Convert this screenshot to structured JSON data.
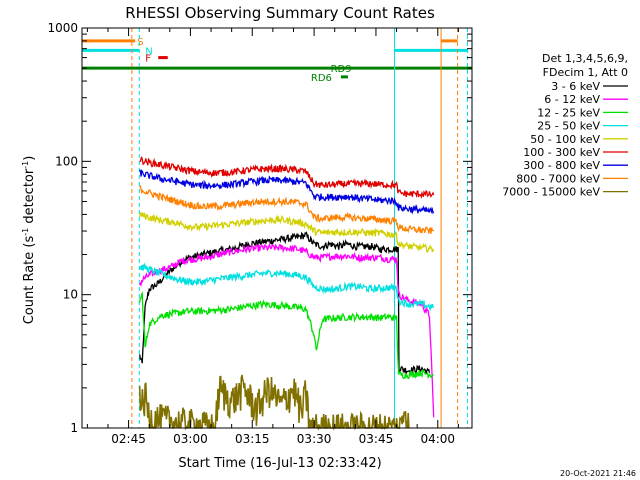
{
  "chart_data": {
    "type": "line",
    "title": "RHESSI Observing Summary Count Rates",
    "xlabel": "Start Time (16-Jul-13 02:33:42)",
    "ylabel": "Count Rate (s",
    "ylabel_sup1": "-1",
    "ylabel_mid": " detector",
    "ylabel_sup2": "-1",
    "ylabel_end": ")",
    "yscale": "log",
    "ylim": [
      1,
      1000
    ],
    "xlim": [
      33.7,
      128.3
    ],
    "x_unit": "minutes after 02:00 UT",
    "x_ticks": [
      {
        "v": 45,
        "label": "02:45"
      },
      {
        "v": 60,
        "label": "03:00"
      },
      {
        "v": 75,
        "label": "03:15"
      },
      {
        "v": 90,
        "label": "03:30"
      },
      {
        "v": 105,
        "label": "03:45"
      },
      {
        "v": 120,
        "label": "04:00"
      }
    ],
    "y_ticks": [
      {
        "v": 1,
        "label": "1"
      },
      {
        "v": 10,
        "label": "10"
      },
      {
        "v": 100,
        "label": "100"
      },
      {
        "v": 1000,
        "label": "1000"
      }
    ],
    "legend": {
      "placement": "right",
      "header": [
        "Det 1,3,4,5,6,9,",
        "FDecim 1, Att 0"
      ],
      "entries": [
        {
          "name": "3 - 6 keV",
          "color": "#000000"
        },
        {
          "name": "6 - 12 keV",
          "color": "#ff00ff"
        },
        {
          "name": "12 - 25 keV",
          "color": "#00e000"
        },
        {
          "name": "25 - 50 keV",
          "color": "#00e0e0"
        },
        {
          "name": "50 - 100 keV",
          "color": "#d0d000"
        },
        {
          "name": "100 - 300 keV",
          "color": "#e00000"
        },
        {
          "name": "300 - 800 keV",
          "color": "#0000e0"
        },
        {
          "name": "800 - 7000 keV",
          "color": "#ff8000"
        },
        {
          "name": "7000 - 15000 keV",
          "color": "#807000"
        }
      ]
    },
    "series": [
      {
        "name": "3 - 6 keV",
        "color": "#000000",
        "points": [
          [
            47.7,
            3.5
          ],
          [
            48.3,
            3.0
          ],
          [
            49.0,
            8.0
          ],
          [
            50.0,
            11
          ],
          [
            52,
            12
          ],
          [
            54,
            14
          ],
          [
            56,
            16
          ],
          [
            58,
            18
          ],
          [
            60,
            19
          ],
          [
            63,
            20
          ],
          [
            66,
            21
          ],
          [
            70,
            22
          ],
          [
            74,
            24
          ],
          [
            78,
            25
          ],
          [
            82,
            26
          ],
          [
            86,
            27
          ],
          [
            88,
            28
          ],
          [
            90,
            24
          ],
          [
            92,
            23
          ],
          [
            94,
            24
          ],
          [
            96,
            23
          ],
          [
            98,
            24
          ],
          [
            100,
            23
          ],
          [
            102,
            23
          ],
          [
            104,
            23
          ],
          [
            106,
            22
          ],
          [
            108,
            22
          ],
          [
            110.4,
            22
          ],
          [
            110.6,
            2.8
          ],
          [
            113,
            2.7
          ],
          [
            116,
            2.8
          ],
          [
            118,
            2.6
          ]
        ]
      },
      {
        "name": "6 - 12 keV",
        "color": "#ff00ff",
        "points": [
          [
            47.7,
            12
          ],
          [
            48.5,
            13
          ],
          [
            50,
            14
          ],
          [
            52,
            15
          ],
          [
            55,
            16
          ],
          [
            58,
            18
          ],
          [
            61,
            18.5
          ],
          [
            64,
            19
          ],
          [
            67,
            20
          ],
          [
            70,
            21
          ],
          [
            74,
            22
          ],
          [
            78,
            22.5
          ],
          [
            82,
            22.5
          ],
          [
            86,
            22
          ],
          [
            88,
            21
          ],
          [
            90,
            19
          ],
          [
            92,
            19
          ],
          [
            95,
            19.5
          ],
          [
            98,
            19.5
          ],
          [
            101,
            19
          ],
          [
            104,
            19
          ],
          [
            106,
            19
          ],
          [
            108,
            18.5
          ],
          [
            110,
            18.5
          ],
          [
            110.5,
            10
          ],
          [
            113,
            9
          ],
          [
            116,
            8.5
          ],
          [
            118,
            7
          ],
          [
            119,
            1.2
          ]
        ]
      },
      {
        "name": "12 - 25 keV",
        "color": "#00e000",
        "points": [
          [
            47.7,
            9
          ],
          [
            48.3,
            10
          ],
          [
            49,
            4
          ],
          [
            50,
            6
          ],
          [
            53,
            7
          ],
          [
            56,
            7.2
          ],
          [
            59,
            7.5
          ],
          [
            62,
            7.5
          ],
          [
            66,
            7.6
          ],
          [
            70,
            7.8
          ],
          [
            74,
            8.2
          ],
          [
            78,
            8.5
          ],
          [
            82,
            8.3
          ],
          [
            86,
            8.0
          ],
          [
            88,
            7.8
          ],
          [
            90,
            5.0
          ],
          [
            90.5,
            3.8
          ],
          [
            92,
            6.5
          ],
          [
            95,
            6.7
          ],
          [
            98,
            6.8
          ],
          [
            101,
            6.8
          ],
          [
            104,
            6.8
          ],
          [
            106,
            6.7
          ],
          [
            108,
            6.8
          ],
          [
            110,
            6.7
          ],
          [
            110.5,
            2.5
          ],
          [
            113,
            2.5
          ],
          [
            116,
            2.6
          ],
          [
            119,
            2.5
          ]
        ]
      },
      {
        "name": "25 - 50 keV",
        "color": "#00e0e0",
        "points": [
          [
            47.7,
            16
          ],
          [
            49,
            16
          ],
          [
            51,
            15
          ],
          [
            54,
            14
          ],
          [
            57,
            13
          ],
          [
            60,
            12.5
          ],
          [
            63,
            12.5
          ],
          [
            66,
            13
          ],
          [
            70,
            13.5
          ],
          [
            74,
            14
          ],
          [
            78,
            14.5
          ],
          [
            82,
            14.5
          ],
          [
            86,
            14
          ],
          [
            88,
            13.5
          ],
          [
            90,
            11.5
          ],
          [
            92,
            11
          ],
          [
            95,
            11
          ],
          [
            98,
            11.5
          ],
          [
            101,
            11.5
          ],
          [
            104,
            11
          ],
          [
            106,
            11.2
          ],
          [
            108,
            11.3
          ],
          [
            110,
            11.2
          ],
          [
            110.5,
            9
          ],
          [
            113,
            8.5
          ],
          [
            116,
            8.5
          ],
          [
            119,
            8
          ]
        ]
      },
      {
        "name": "50 - 100 keV",
        "color": "#d0d000",
        "points": [
          [
            47.7,
            40
          ],
          [
            50,
            38
          ],
          [
            53,
            36
          ],
          [
            56,
            35
          ],
          [
            59,
            33
          ],
          [
            62,
            32
          ],
          [
            66,
            33
          ],
          [
            70,
            34
          ],
          [
            74,
            35
          ],
          [
            78,
            36
          ],
          [
            82,
            36.5
          ],
          [
            86,
            35
          ],
          [
            88,
            34
          ],
          [
            90,
            30
          ],
          [
            92,
            29
          ],
          [
            95,
            29.5
          ],
          [
            98,
            29.5
          ],
          [
            101,
            29.5
          ],
          [
            104,
            29
          ],
          [
            106,
            29
          ],
          [
            108,
            28.5
          ],
          [
            110,
            28
          ],
          [
            110.5,
            24
          ],
          [
            113,
            23
          ],
          [
            116,
            22.5
          ],
          [
            119,
            22
          ]
        ]
      },
      {
        "name": "100 - 300 keV",
        "color": "#e00000",
        "points": [
          [
            47.7,
            103
          ],
          [
            50,
            98
          ],
          [
            53,
            94
          ],
          [
            56,
            90
          ],
          [
            59,
            86
          ],
          [
            62,
            83
          ],
          [
            66,
            82
          ],
          [
            70,
            83
          ],
          [
            74,
            86
          ],
          [
            78,
            88
          ],
          [
            82,
            88
          ],
          [
            86,
            86
          ],
          [
            88,
            84
          ],
          [
            90,
            68
          ],
          [
            92,
            66
          ],
          [
            95,
            67
          ],
          [
            98,
            68
          ],
          [
            101,
            68
          ],
          [
            104,
            68
          ],
          [
            106,
            67
          ],
          [
            108,
            67
          ],
          [
            110,
            66
          ],
          [
            110.5,
            58
          ],
          [
            113,
            57
          ],
          [
            116,
            57
          ],
          [
            119,
            56
          ]
        ]
      },
      {
        "name": "300 - 800 keV",
        "color": "#0000e0",
        "points": [
          [
            47.7,
            82
          ],
          [
            50,
            78
          ],
          [
            53,
            74
          ],
          [
            56,
            71
          ],
          [
            59,
            68
          ],
          [
            62,
            66
          ],
          [
            66,
            66
          ],
          [
            70,
            67
          ],
          [
            74,
            70
          ],
          [
            78,
            72
          ],
          [
            82,
            72
          ],
          [
            86,
            70
          ],
          [
            88,
            69
          ],
          [
            90,
            55
          ],
          [
            92,
            54
          ],
          [
            95,
            54
          ],
          [
            98,
            54.5
          ],
          [
            101,
            53
          ],
          [
            104,
            52
          ],
          [
            106,
            51
          ],
          [
            108,
            51
          ],
          [
            110,
            50
          ],
          [
            110.5,
            45
          ],
          [
            113,
            44
          ],
          [
            116,
            43
          ],
          [
            119,
            42
          ]
        ]
      },
      {
        "name": "800 - 7000 keV",
        "color": "#ff8000",
        "points": [
          [
            47.7,
            62
          ],
          [
            50,
            58
          ],
          [
            53,
            54
          ],
          [
            56,
            51
          ],
          [
            59,
            48
          ],
          [
            62,
            46
          ],
          [
            66,
            46
          ],
          [
            70,
            47
          ],
          [
            74,
            49
          ],
          [
            78,
            50
          ],
          [
            82,
            50
          ],
          [
            86,
            49
          ],
          [
            88,
            48
          ],
          [
            90,
            38
          ],
          [
            92,
            37
          ],
          [
            95,
            38
          ],
          [
            98,
            38
          ],
          [
            101,
            37.5
          ],
          [
            104,
            37
          ],
          [
            106,
            36.5
          ],
          [
            108,
            36
          ],
          [
            110,
            35.5
          ],
          [
            110.5,
            32
          ],
          [
            113,
            31
          ],
          [
            116,
            30.5
          ],
          [
            119,
            30
          ]
        ]
      },
      {
        "name": "7000 - 15000 keV",
        "color": "#807000",
        "points": [
          [
            47.7,
            2.0
          ],
          [
            48.5,
            1.4
          ],
          [
            49,
            1.8
          ],
          [
            50,
            1.2
          ],
          [
            66,
            1.0
          ],
          [
            67,
            2.0
          ],
          [
            70,
            1.6
          ],
          [
            73,
            2.0
          ],
          [
            76,
            1.4
          ],
          [
            79,
            2.0
          ],
          [
            82,
            1.5
          ],
          [
            85,
            2.0
          ],
          [
            87,
            1.3
          ],
          [
            88,
            1.9
          ],
          [
            89,
            1.0
          ],
          [
            111,
            1.0
          ],
          [
            112,
            1.5
          ],
          [
            113,
            1.0
          ]
        ]
      }
    ],
    "state_bars": [
      {
        "label": "S",
        "color": "#ff8000",
        "y": 800,
        "segments": [
          [
            33.7,
            46.6
          ],
          [
            120.8,
            124.8
          ]
        ]
      },
      {
        "label": "N",
        "color": "#00e0e0",
        "y": 680,
        "segments": [
          [
            33.7,
            47.6
          ],
          [
            109.5,
            127.2
          ]
        ]
      },
      {
        "label": "F",
        "color": "#e00000",
        "y": 600,
        "segments": [
          [
            52.2,
            54.5
          ]
        ]
      },
      {
        "label": "RD9",
        "color": "#008000",
        "y": 500,
        "segments": [
          [
            33.7,
            128.3
          ]
        ]
      },
      {
        "label": "RD6",
        "color": "#008000",
        "y": 430,
        "segments": [
          [
            96.5,
            98.2
          ]
        ]
      }
    ],
    "vlines": [
      {
        "x": 45.8,
        "color": "#ff8000",
        "style": "dash"
      },
      {
        "x": 47.6,
        "color": "#00e0e0",
        "style": "dash"
      },
      {
        "x": 109.5,
        "color": "#00e0e0",
        "style": "solid"
      },
      {
        "x": 120.8,
        "color": "#ff8000",
        "style": "solid"
      },
      {
        "x": 124.8,
        "color": "#ff8000",
        "style": "dash"
      },
      {
        "x": 127.2,
        "color": "#00e0e0",
        "style": "dash"
      }
    ],
    "timestamp": "20-Oct-2021 21:46"
  }
}
